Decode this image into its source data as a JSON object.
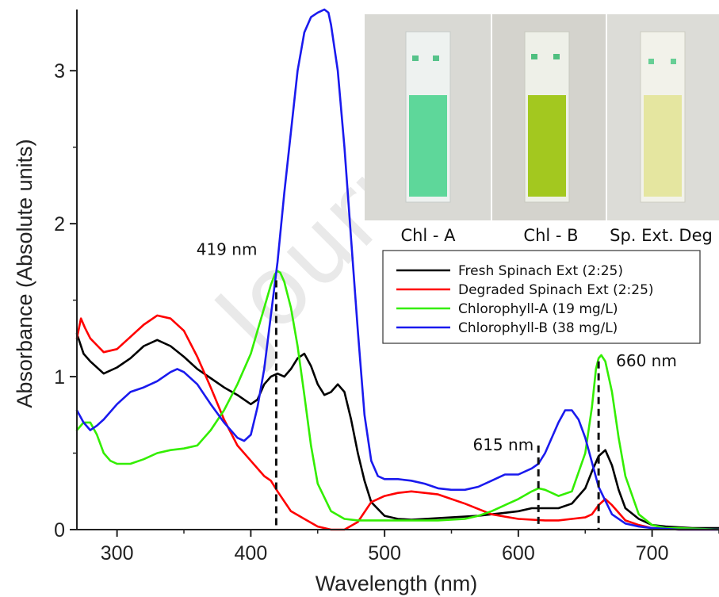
{
  "chart_data": {
    "type": "line",
    "xlabel": "Wavelength (nm)",
    "ylabel": "Absorbance (Absolute units)",
    "xlim": [
      270,
      750
    ],
    "ylim": [
      0,
      3.4
    ],
    "x_ticks": [
      300,
      400,
      500,
      600,
      700
    ],
    "y_ticks": [
      0,
      1,
      2,
      3
    ],
    "legend_position": "center-right",
    "watermark_text": "Journal",
    "annotations": [
      {
        "text": "419 nm",
        "x": 419,
        "line_top": 1.63
      },
      {
        "text": "615 nm",
        "x": 615,
        "line_top": 0.55
      },
      {
        "text": "660 nm",
        "x": 660,
        "line_top": 1.1
      }
    ],
    "inset_captions": [
      "Chl - A",
      "Chl - B",
      "Sp. Ext. Deg"
    ],
    "series": [
      {
        "name": "Fresh Spinach Ext (2:25)",
        "color": "#000000",
        "x": [
          270,
          275,
          280,
          290,
          300,
          310,
          320,
          330,
          340,
          350,
          360,
          370,
          380,
          390,
          400,
          405,
          410,
          415,
          420,
          425,
          430,
          435,
          440,
          445,
          450,
          455,
          460,
          465,
          470,
          475,
          480,
          485,
          490,
          500,
          510,
          520,
          530,
          540,
          550,
          560,
          570,
          580,
          590,
          600,
          610,
          620,
          630,
          640,
          650,
          655,
          660,
          665,
          670,
          675,
          680,
          690,
          700,
          710,
          720,
          730,
          740,
          750
        ],
        "values": [
          1.28,
          1.15,
          1.1,
          1.02,
          1.06,
          1.12,
          1.2,
          1.24,
          1.2,
          1.13,
          1.05,
          0.99,
          0.93,
          0.88,
          0.82,
          0.85,
          0.95,
          1.0,
          1.02,
          1.0,
          1.05,
          1.12,
          1.15,
          1.07,
          0.95,
          0.88,
          0.9,
          0.95,
          0.9,
          0.72,
          0.5,
          0.32,
          0.18,
          0.09,
          0.07,
          0.065,
          0.07,
          0.075,
          0.08,
          0.085,
          0.09,
          0.1,
          0.11,
          0.12,
          0.14,
          0.14,
          0.14,
          0.17,
          0.27,
          0.38,
          0.48,
          0.52,
          0.42,
          0.26,
          0.14,
          0.07,
          0.03,
          0.02,
          0.015,
          0.01,
          0.01,
          0.01
        ]
      },
      {
        "name": "Degraded Spinach Ext (2:25)",
        "color": "#ff0000",
        "x": [
          270,
          273,
          276,
          280,
          290,
          300,
          310,
          320,
          330,
          340,
          350,
          360,
          370,
          380,
          390,
          400,
          410,
          415,
          420,
          430,
          440,
          450,
          460,
          470,
          480,
          490,
          500,
          510,
          520,
          540,
          560,
          580,
          600,
          620,
          630,
          640,
          650,
          655,
          660,
          665,
          670,
          680,
          690,
          700,
          720,
          750
        ],
        "values": [
          1.25,
          1.38,
          1.32,
          1.25,
          1.16,
          1.18,
          1.26,
          1.34,
          1.4,
          1.38,
          1.3,
          1.13,
          0.93,
          0.72,
          0.55,
          0.45,
          0.35,
          0.32,
          0.25,
          0.12,
          0.07,
          0.02,
          0.0,
          -0.02,
          0.05,
          0.18,
          0.22,
          0.24,
          0.25,
          0.23,
          0.17,
          0.1,
          0.07,
          0.06,
          0.06,
          0.07,
          0.08,
          0.1,
          0.16,
          0.2,
          0.16,
          0.06,
          0.03,
          0.01,
          0.0,
          0.0
        ]
      },
      {
        "name": "Chlorophyll-A (19 mg/L)",
        "color": "#33ee00",
        "x": [
          270,
          275,
          280,
          285,
          290,
          295,
          300,
          310,
          320,
          330,
          340,
          350,
          360,
          370,
          380,
          390,
          400,
          405,
          410,
          415,
          418,
          420,
          422,
          425,
          430,
          435,
          440,
          445,
          450,
          460,
          470,
          480,
          500,
          520,
          540,
          560,
          570,
          580,
          590,
          600,
          610,
          615,
          620,
          625,
          630,
          640,
          650,
          655,
          658,
          660,
          662,
          665,
          670,
          675,
          680,
          690,
          700,
          710,
          720,
          750
        ],
        "values": [
          0.65,
          0.7,
          0.7,
          0.62,
          0.5,
          0.45,
          0.43,
          0.43,
          0.46,
          0.5,
          0.52,
          0.53,
          0.55,
          0.65,
          0.78,
          0.95,
          1.15,
          1.3,
          1.45,
          1.6,
          1.67,
          1.69,
          1.68,
          1.62,
          1.45,
          1.2,
          0.88,
          0.55,
          0.3,
          0.12,
          0.07,
          0.06,
          0.06,
          0.06,
          0.06,
          0.07,
          0.09,
          0.12,
          0.16,
          0.2,
          0.25,
          0.27,
          0.26,
          0.24,
          0.22,
          0.25,
          0.5,
          0.8,
          1.05,
          1.12,
          1.14,
          1.1,
          0.9,
          0.6,
          0.35,
          0.1,
          0.03,
          0.01,
          0.01,
          0.0
        ]
      },
      {
        "name": "Chlorophyll-B (38 mg/L)",
        "color": "#1a1aee",
        "x": [
          270,
          275,
          280,
          285,
          290,
          300,
          310,
          320,
          330,
          340,
          345,
          350,
          360,
          370,
          380,
          390,
          395,
          400,
          405,
          410,
          415,
          420,
          425,
          430,
          435,
          440,
          445,
          450,
          455,
          458,
          460,
          465,
          470,
          475,
          480,
          485,
          490,
          495,
          500,
          510,
          520,
          530,
          540,
          550,
          560,
          570,
          580,
          590,
          600,
          610,
          615,
          620,
          630,
          635,
          640,
          645,
          650,
          660,
          670,
          680,
          690,
          700,
          720,
          750
        ],
        "values": [
          0.78,
          0.7,
          0.65,
          0.68,
          0.72,
          0.82,
          0.9,
          0.93,
          0.97,
          1.03,
          1.05,
          1.03,
          0.95,
          0.82,
          0.7,
          0.6,
          0.58,
          0.62,
          0.8,
          1.05,
          1.4,
          1.75,
          2.2,
          2.6,
          3.0,
          3.25,
          3.35,
          3.38,
          3.4,
          3.38,
          3.3,
          3.0,
          2.5,
          1.9,
          1.3,
          0.75,
          0.45,
          0.35,
          0.33,
          0.33,
          0.32,
          0.3,
          0.27,
          0.26,
          0.26,
          0.28,
          0.32,
          0.36,
          0.36,
          0.4,
          0.43,
          0.5,
          0.7,
          0.78,
          0.78,
          0.72,
          0.6,
          0.28,
          0.1,
          0.04,
          0.02,
          0.01,
          0.0,
          0.0
        ]
      }
    ]
  }
}
